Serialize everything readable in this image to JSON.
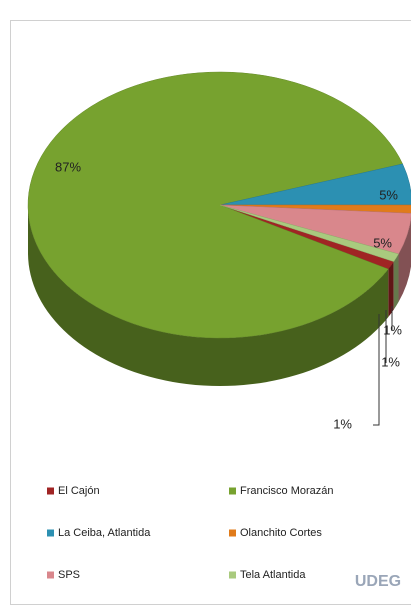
{
  "chart_data": {
    "type": "pie",
    "categories": [
      "El Cajón",
      "Francisco Morazán",
      "La Ceiba, Atlantida",
      "Olanchito Cortes",
      "SPS",
      "Tela Atlantida"
    ],
    "values": [
      1,
      87,
      5,
      1,
      5,
      1
    ],
    "value_labels": [
      "1%",
      "87%",
      "5%",
      "1%",
      "5%",
      "1%"
    ],
    "colors": [
      "#a02424",
      "#77a22f",
      "#2c90b2",
      "#e07b1a",
      "#d9878c",
      "#a9ca7e"
    ],
    "legend": "bottom",
    "logo": "UDEG"
  }
}
